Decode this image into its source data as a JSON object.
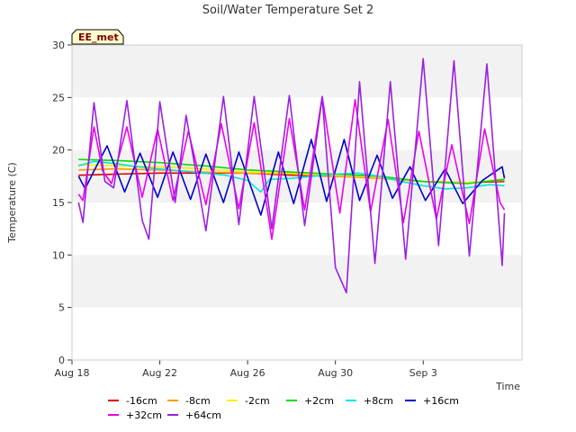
{
  "chart_data": {
    "type": "line",
    "title": "Soil/Water Temperature Set 2",
    "badge": "EE_met",
    "xlabel": "Time",
    "ylabel": "Temperature (C)",
    "xlim_days": [
      18,
      38.5
    ],
    "ylim": [
      0,
      30
    ],
    "yticks": [
      0,
      5,
      10,
      15,
      20,
      25,
      30
    ],
    "xticks": [
      {
        "label": "Aug 18",
        "day": 18
      },
      {
        "label": "Aug 22",
        "day": 22
      },
      {
        "label": "Aug 26",
        "day": 26
      },
      {
        "label": "Aug 30",
        "day": 30
      },
      {
        "label": "Sep 3",
        "day": 34
      }
    ],
    "grid": "alternating horizontal bands",
    "legend_position": "bottom",
    "series": [
      {
        "name": "-16cm",
        "color": "#dd0000",
        "points": [
          [
            18.3,
            17.6
          ],
          [
            20,
            17.7
          ],
          [
            22,
            17.8
          ],
          [
            24,
            17.8
          ],
          [
            26,
            17.8
          ],
          [
            28,
            17.6
          ],
          [
            30,
            17.5
          ],
          [
            32,
            17.4
          ],
          [
            34,
            17.0
          ],
          [
            36,
            16.9
          ],
          [
            37.7,
            17.0
          ]
        ]
      },
      {
        "name": "-8cm",
        "color": "#ff9900",
        "points": [
          [
            18.3,
            18.1
          ],
          [
            20,
            18.2
          ],
          [
            22,
            18.1
          ],
          [
            24,
            17.9
          ],
          [
            26,
            17.8
          ],
          [
            28,
            17.7
          ],
          [
            30,
            17.5
          ],
          [
            32,
            17.3
          ],
          [
            34,
            17.0
          ],
          [
            36,
            16.9
          ],
          [
            37.7,
            17.1
          ]
        ]
      },
      {
        "name": "-2cm",
        "color": "#ffee00",
        "points": [
          [
            18.3,
            18.6
          ],
          [
            20,
            18.5
          ],
          [
            22,
            18.4
          ],
          [
            24,
            18.2
          ],
          [
            26,
            17.9
          ],
          [
            28,
            17.8
          ],
          [
            30,
            17.6
          ],
          [
            32,
            17.4
          ],
          [
            34,
            17.0
          ],
          [
            36,
            16.9
          ],
          [
            37.7,
            17.2
          ]
        ]
      },
      {
        "name": "+2cm",
        "color": "#00dd00",
        "points": [
          [
            18.3,
            19.1
          ],
          [
            20,
            19.0
          ],
          [
            22,
            18.8
          ],
          [
            24,
            18.5
          ],
          [
            26,
            18.1
          ],
          [
            28,
            17.9
          ],
          [
            30,
            17.7
          ],
          [
            32,
            17.5
          ],
          [
            34,
            17.0
          ],
          [
            36,
            16.8
          ],
          [
            37.7,
            17.2
          ]
        ]
      },
      {
        "name": "+8cm",
        "color": "#00e5e5",
        "points": [
          [
            18.3,
            18.5
          ],
          [
            19,
            18.9
          ],
          [
            20,
            18.7
          ],
          [
            21,
            18.4
          ],
          [
            22,
            18.2
          ],
          [
            23,
            18.0
          ],
          [
            24,
            17.8
          ],
          [
            25,
            17.6
          ],
          [
            26,
            17.1
          ],
          [
            26.6,
            16.0
          ],
          [
            27,
            17.2
          ],
          [
            28,
            17.3
          ],
          [
            29,
            17.5
          ],
          [
            30,
            17.7
          ],
          [
            31,
            17.8
          ],
          [
            32,
            17.5
          ],
          [
            33,
            17.0
          ],
          [
            34,
            16.6
          ],
          [
            35,
            16.3
          ],
          [
            36,
            16.4
          ],
          [
            37,
            16.7
          ],
          [
            37.7,
            16.6
          ]
        ]
      },
      {
        "name": "+16cm",
        "color": "#0000cc",
        "points": [
          [
            18.3,
            17.5
          ],
          [
            18.6,
            16.3
          ],
          [
            19.0,
            18.0
          ],
          [
            19.6,
            20.4
          ],
          [
            20.4,
            16.0
          ],
          [
            21.1,
            19.7
          ],
          [
            21.9,
            15.5
          ],
          [
            22.6,
            19.8
          ],
          [
            23.4,
            15.3
          ],
          [
            24.1,
            19.6
          ],
          [
            24.9,
            15.0
          ],
          [
            25.6,
            19.8
          ],
          [
            26.6,
            13.8
          ],
          [
            27.4,
            19.8
          ],
          [
            28.1,
            14.9
          ],
          [
            28.9,
            21.0
          ],
          [
            29.6,
            15.1
          ],
          [
            30.4,
            21.0
          ],
          [
            31.1,
            15.2
          ],
          [
            31.9,
            19.5
          ],
          [
            32.6,
            15.4
          ],
          [
            33.4,
            18.4
          ],
          [
            34.1,
            15.2
          ],
          [
            35,
            18.2
          ],
          [
            35.8,
            14.9
          ],
          [
            36.7,
            17.1
          ],
          [
            37.6,
            18.4
          ],
          [
            37.7,
            17.3
          ]
        ]
      },
      {
        "name": "+32cm",
        "color": "#ee00ee",
        "points": [
          [
            18.3,
            15.8
          ],
          [
            18.5,
            15.2
          ],
          [
            19.0,
            22.2
          ],
          [
            19.4,
            18.0
          ],
          [
            19.8,
            16.8
          ],
          [
            20.5,
            22.2
          ],
          [
            21.2,
            15.5
          ],
          [
            21.9,
            22.0
          ],
          [
            22.6,
            15.2
          ],
          [
            23.3,
            21.8
          ],
          [
            24.1,
            14.8
          ],
          [
            24.8,
            22.5
          ],
          [
            25.6,
            14.4
          ],
          [
            26.3,
            22.6
          ],
          [
            27.1,
            11.5
          ],
          [
            27.9,
            23.0
          ],
          [
            28.6,
            14.3
          ],
          [
            29.4,
            25.1
          ],
          [
            30.2,
            14.0
          ],
          [
            30.9,
            24.8
          ],
          [
            31.6,
            14.1
          ],
          [
            32.4,
            22.9
          ],
          [
            33.1,
            13.1
          ],
          [
            33.8,
            21.8
          ],
          [
            34.6,
            13.4
          ],
          [
            35.3,
            20.5
          ],
          [
            36.1,
            13.0
          ],
          [
            36.8,
            22.0
          ],
          [
            37.5,
            15.0
          ],
          [
            37.7,
            14.3
          ]
        ]
      },
      {
        "name": "+64cm",
        "color": "#9922dd",
        "points": [
          [
            18.3,
            15.0
          ],
          [
            18.5,
            13.1
          ],
          [
            19.0,
            24.5
          ],
          [
            19.5,
            17.0
          ],
          [
            19.9,
            16.4
          ],
          [
            20.5,
            24.7
          ],
          [
            21.2,
            13.3
          ],
          [
            21.5,
            11.5
          ],
          [
            22.0,
            24.6
          ],
          [
            22.7,
            15.0
          ],
          [
            23.2,
            23.3
          ],
          [
            24.1,
            12.3
          ],
          [
            24.9,
            25.1
          ],
          [
            25.6,
            12.9
          ],
          [
            26.3,
            25.1
          ],
          [
            27.1,
            12.5
          ],
          [
            27.9,
            25.2
          ],
          [
            28.6,
            12.8
          ],
          [
            29.4,
            25.0
          ],
          [
            30.0,
            8.8
          ],
          [
            30.5,
            6.4
          ],
          [
            31.1,
            26.5
          ],
          [
            31.8,
            9.2
          ],
          [
            32.5,
            26.5
          ],
          [
            33.2,
            9.6
          ],
          [
            34.0,
            28.7
          ],
          [
            34.7,
            10.9
          ],
          [
            35.4,
            28.5
          ],
          [
            36.1,
            9.9
          ],
          [
            36.9,
            28.2
          ],
          [
            37.6,
            9.0
          ],
          [
            37.7,
            14.0
          ]
        ]
      }
    ]
  }
}
